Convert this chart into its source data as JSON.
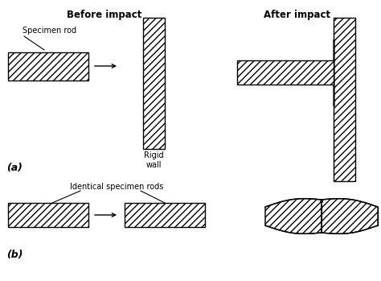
{
  "bg_color": "#ffffff",
  "line_color": "#000000",
  "title_before": "Before impact",
  "title_after": "After impact",
  "label_a": "(a)",
  "label_b": "(b)",
  "label_specimen_rod": "Specimen rod",
  "label_rigid_wall": "Rigid\nwall",
  "label_identical": "Identical specimen rods"
}
